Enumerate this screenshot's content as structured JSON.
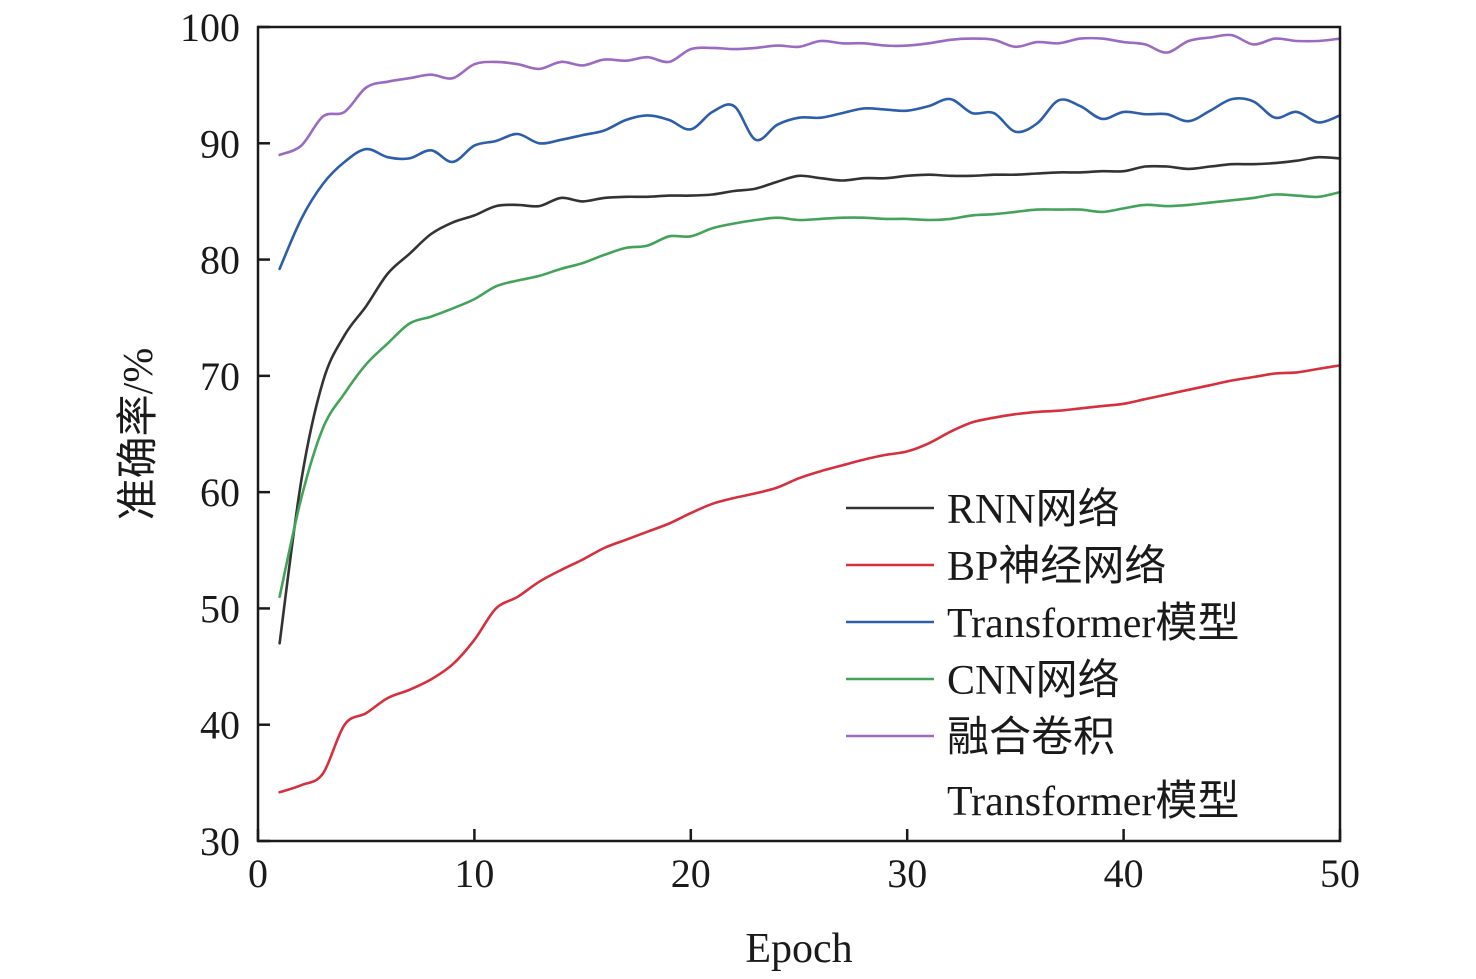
{
  "chart_data": {
    "type": "line",
    "xlabel": "Epoch",
    "ylabel": "准确率/%",
    "xlim": [
      0,
      50
    ],
    "ylim": [
      30,
      100
    ],
    "xticks": [
      0,
      10,
      20,
      30,
      40,
      50
    ],
    "yticks": [
      30,
      40,
      50,
      60,
      70,
      80,
      90,
      100
    ],
    "grid": false,
    "legend_position": "lower-right",
    "x": [
      1,
      2,
      3,
      4,
      5,
      6,
      7,
      8,
      9,
      10,
      11,
      12,
      13,
      14,
      15,
      16,
      17,
      18,
      19,
      20,
      21,
      22,
      23,
      24,
      25,
      26,
      27,
      28,
      29,
      30,
      31,
      32,
      33,
      34,
      35,
      36,
      37,
      38,
      39,
      40,
      41,
      42,
      43,
      44,
      45,
      46,
      47,
      48,
      49,
      50
    ],
    "series": [
      {
        "name": "RNN网络",
        "color": "#333333",
        "values": [
          47.0,
          61.0,
          69.5,
          73.5,
          76.0,
          78.8,
          80.5,
          82.2,
          83.2,
          83.8,
          84.6,
          84.7,
          84.6,
          85.3,
          85.0,
          85.3,
          85.4,
          85.4,
          85.5,
          85.5,
          85.6,
          85.9,
          86.1,
          86.7,
          87.2,
          87.0,
          86.8,
          87.0,
          87.0,
          87.2,
          87.3,
          87.2,
          87.2,
          87.3,
          87.3,
          87.4,
          87.5,
          87.5,
          87.6,
          87.6,
          88.0,
          88.0,
          87.8,
          88.0,
          88.2,
          88.2,
          88.3,
          88.5,
          88.8,
          88.7
        ]
      },
      {
        "name": "BP神经网络",
        "color": "#d62f3e",
        "values": [
          34.2,
          34.8,
          35.8,
          40.0,
          41.0,
          42.3,
          43.0,
          43.9,
          45.2,
          47.3,
          50.0,
          51.0,
          52.3,
          53.3,
          54.2,
          55.2,
          55.9,
          56.6,
          57.3,
          58.2,
          59.0,
          59.5,
          59.9,
          60.4,
          61.2,
          61.8,
          62.3,
          62.8,
          63.2,
          63.5,
          64.2,
          65.2,
          66.0,
          66.4,
          66.7,
          66.9,
          67.0,
          67.2,
          67.4,
          67.6,
          68.0,
          68.4,
          68.8,
          69.2,
          69.6,
          69.9,
          70.2,
          70.3,
          70.6,
          70.9
        ]
      },
      {
        "name": "Transformer模型",
        "color": "#2e5ea9",
        "values": [
          79.2,
          83.5,
          86.5,
          88.4,
          89.5,
          88.8,
          88.7,
          89.4,
          88.4,
          89.8,
          90.2,
          90.8,
          90.0,
          90.3,
          90.7,
          91.1,
          92.0,
          92.4,
          92.0,
          91.2,
          92.7,
          93.2,
          90.3,
          91.6,
          92.2,
          92.2,
          92.6,
          93.0,
          92.9,
          92.8,
          93.2,
          93.8,
          92.6,
          92.6,
          91.0,
          91.7,
          93.7,
          93.2,
          92.1,
          92.7,
          92.5,
          92.5,
          91.9,
          92.8,
          93.8,
          93.6,
          92.2,
          92.7,
          91.8,
          92.4
        ]
      },
      {
        "name": "CNN网络",
        "color": "#43a35a",
        "values": [
          51.0,
          59.5,
          65.5,
          68.5,
          71.0,
          72.8,
          74.5,
          75.1,
          75.8,
          76.6,
          77.7,
          78.2,
          78.6,
          79.2,
          79.7,
          80.4,
          81.0,
          81.2,
          82.0,
          82.0,
          82.7,
          83.1,
          83.4,
          83.6,
          83.4,
          83.5,
          83.6,
          83.6,
          83.5,
          83.5,
          83.4,
          83.5,
          83.8,
          83.9,
          84.1,
          84.3,
          84.3,
          84.3,
          84.1,
          84.4,
          84.7,
          84.6,
          84.7,
          84.9,
          85.1,
          85.3,
          85.6,
          85.5,
          85.4,
          85.8
        ]
      },
      {
        "name": "融合卷积Transformer模型",
        "name_lines": [
          "融合卷积",
          "Transformer模型"
        ],
        "color": "#9a6bc0",
        "values": [
          89.0,
          89.8,
          92.3,
          92.7,
          94.8,
          95.3,
          95.6,
          95.9,
          95.6,
          96.8,
          97.0,
          96.8,
          96.4,
          97.0,
          96.7,
          97.2,
          97.1,
          97.4,
          97.0,
          98.1,
          98.2,
          98.1,
          98.2,
          98.4,
          98.3,
          98.8,
          98.6,
          98.6,
          98.4,
          98.4,
          98.6,
          98.9,
          99.0,
          98.9,
          98.3,
          98.7,
          98.6,
          99.0,
          99.0,
          98.7,
          98.5,
          97.8,
          98.8,
          99.1,
          99.3,
          98.5,
          99.0,
          98.8,
          98.8,
          99.0
        ]
      }
    ]
  }
}
